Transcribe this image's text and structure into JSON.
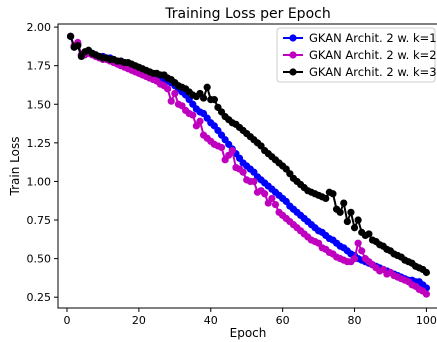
{
  "chart_data": {
    "type": "line",
    "title": "Training Loss per Epoch",
    "xlabel": "Epoch",
    "ylabel": "Train Loss",
    "xlim": [
      -2.5,
      103.5
    ],
    "ylim": [
      0.18,
      2.02
    ],
    "xticks": [
      "0",
      "20",
      "40",
      "60",
      "80",
      "100"
    ],
    "yticks": [
      "0.25",
      "0.50",
      "0.75",
      "1.00",
      "1.25",
      "1.50",
      "1.75",
      "2.00"
    ],
    "grid": false,
    "legend_position": "top-right",
    "series": [
      {
        "name": "GKAN Archit. 2 w. k=1",
        "color": "#0000ff",
        "values": [
          1.94,
          1.87,
          1.89,
          1.82,
          1.83,
          1.84,
          1.83,
          1.82,
          1.81,
          1.81,
          1.8,
          1.8,
          1.79,
          1.78,
          1.78,
          1.77,
          1.76,
          1.75,
          1.74,
          1.73,
          1.72,
          1.71,
          1.7,
          1.69,
          1.68,
          1.67,
          1.66,
          1.65,
          1.64,
          1.62,
          1.6,
          1.58,
          1.56,
          1.53,
          1.5,
          1.47,
          1.45,
          1.44,
          1.41,
          1.38,
          1.36,
          1.33,
          1.3,
          1.27,
          1.24,
          1.21,
          1.18,
          1.15,
          1.12,
          1.1,
          1.08,
          1.06,
          1.03,
          1.01,
          0.99,
          0.97,
          0.95,
          0.93,
          0.91,
          0.89,
          0.87,
          0.84,
          0.82,
          0.8,
          0.78,
          0.76,
          0.74,
          0.72,
          0.7,
          0.68,
          0.67,
          0.65,
          0.63,
          0.62,
          0.6,
          0.58,
          0.57,
          0.55,
          0.53,
          0.52,
          0.5,
          0.49,
          0.48,
          0.47,
          0.46,
          0.45,
          0.44,
          0.43,
          0.42,
          0.41,
          0.4,
          0.39,
          0.38,
          0.37,
          0.36,
          0.36,
          0.35,
          0.35,
          0.33,
          0.31
        ]
      },
      {
        "name": "GKAN Archit. 2 w. k=2",
        "color": "#bf00bf",
        "values": [
          1.94,
          1.88,
          1.9,
          1.82,
          1.82,
          1.83,
          1.82,
          1.81,
          1.8,
          1.79,
          1.79,
          1.78,
          1.77,
          1.76,
          1.75,
          1.74,
          1.73,
          1.72,
          1.71,
          1.7,
          1.69,
          1.68,
          1.67,
          1.66,
          1.65,
          1.63,
          1.62,
          1.6,
          1.52,
          1.57,
          1.5,
          1.49,
          1.46,
          1.44,
          1.43,
          1.36,
          1.39,
          1.3,
          1.28,
          1.26,
          1.24,
          1.23,
          1.22,
          1.14,
          1.17,
          1.2,
          1.09,
          1.08,
          1.06,
          1.01,
          1.0,
          1.0,
          0.93,
          0.94,
          0.92,
          0.86,
          0.89,
          0.85,
          0.8,
          0.78,
          0.76,
          0.74,
          0.72,
          0.7,
          0.68,
          0.66,
          0.64,
          0.62,
          0.61,
          0.6,
          0.57,
          0.56,
          0.54,
          0.53,
          0.51,
          0.5,
          0.49,
          0.48,
          0.48,
          0.5,
          0.6,
          0.55,
          0.5,
          0.48,
          0.46,
          0.44,
          0.42,
          0.43,
          0.4,
          0.41,
          0.39,
          0.38,
          0.37,
          0.36,
          0.35,
          0.33,
          0.32,
          0.3,
          0.29,
          0.27
        ]
      },
      {
        "name": "GKAN Archit. 2 w. k=3",
        "color": "#000000",
        "values": [
          1.94,
          1.87,
          1.88,
          1.81,
          1.84,
          1.85,
          1.83,
          1.82,
          1.81,
          1.8,
          1.8,
          1.79,
          1.79,
          1.78,
          1.78,
          1.77,
          1.77,
          1.76,
          1.75,
          1.74,
          1.73,
          1.72,
          1.71,
          1.7,
          1.7,
          1.69,
          1.69,
          1.67,
          1.66,
          1.64,
          1.62,
          1.61,
          1.6,
          1.58,
          1.56,
          1.55,
          1.57,
          1.54,
          1.61,
          1.53,
          1.53,
          1.48,
          1.45,
          1.42,
          1.4,
          1.38,
          1.37,
          1.35,
          1.33,
          1.31,
          1.29,
          1.27,
          1.25,
          1.23,
          1.2,
          1.18,
          1.16,
          1.14,
          1.12,
          1.1,
          1.08,
          1.05,
          1.02,
          1.0,
          0.98,
          0.96,
          0.94,
          0.93,
          0.92,
          0.91,
          0.9,
          0.89,
          0.93,
          0.92,
          0.82,
          0.8,
          0.86,
          0.74,
          0.8,
          0.7,
          0.75,
          0.67,
          0.65,
          0.66,
          0.62,
          0.61,
          0.59,
          0.58,
          0.56,
          0.55,
          0.53,
          0.52,
          0.51,
          0.49,
          0.48,
          0.47,
          0.45,
          0.44,
          0.43,
          0.41
        ]
      }
    ]
  }
}
